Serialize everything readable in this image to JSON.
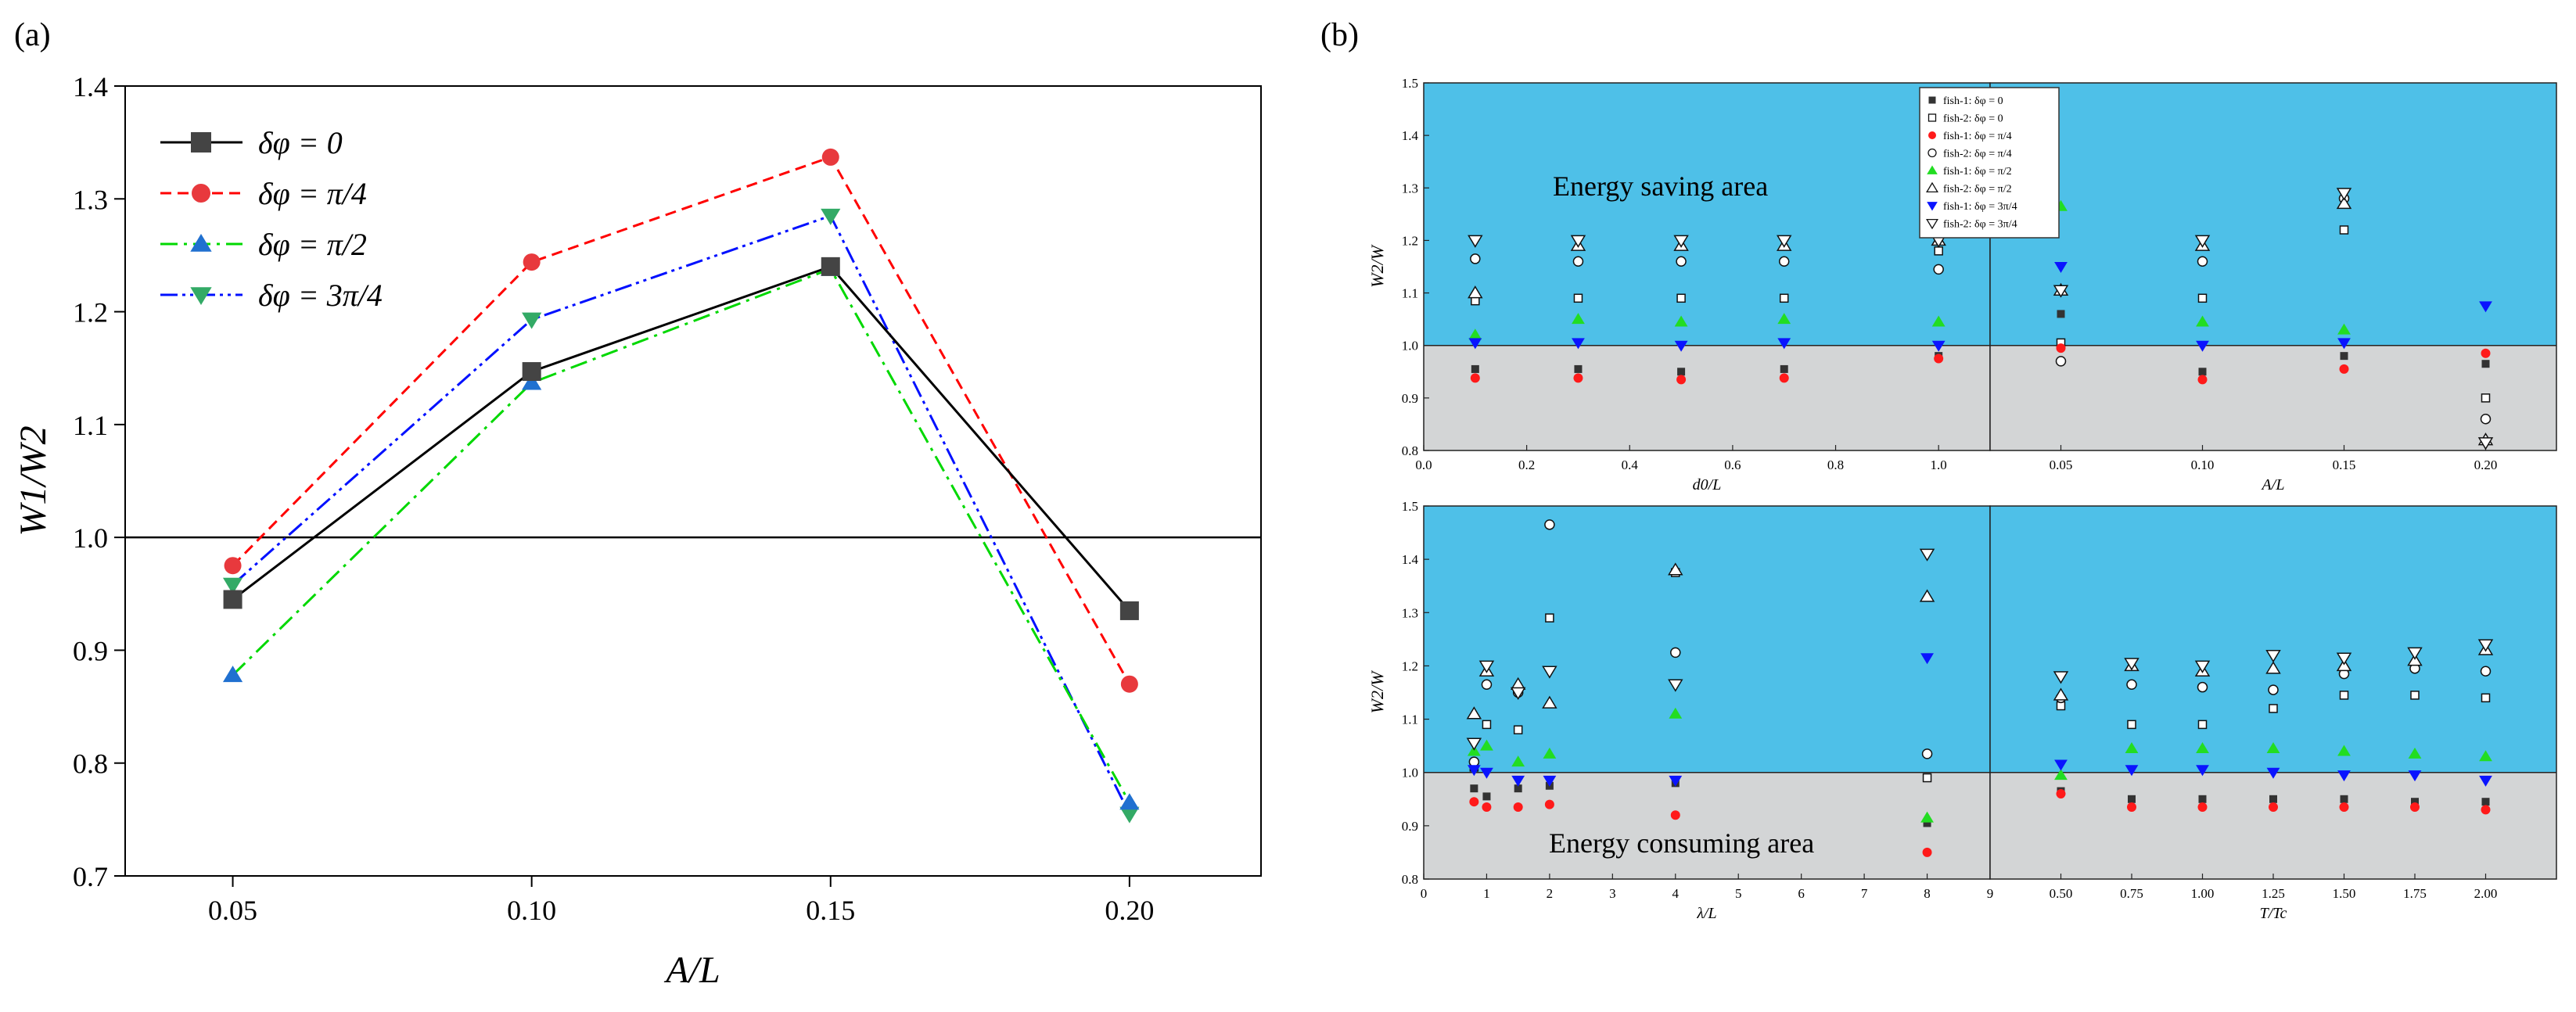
{
  "panel_labels": [
    "(a)",
    "(b)"
  ],
  "colors": {
    "black": "#000000",
    "red": "#ff0000",
    "green": "#00d800",
    "blue": "#0010ff",
    "marker_black": "#444444",
    "marker_red": "#e8393d",
    "marker_green": "#33cc33",
    "marker_blue": "#2070d0",
    "marker_tri_down": "#33aa66",
    "saving": "#4ec0e8",
    "consuming": "#d3d5d6"
  },
  "chart_data": [
    {
      "type": "line",
      "panel": "(a)",
      "xlabel": "A/L",
      "ylabel": "W1/W2",
      "categories": [
        "0.05",
        "0.10",
        "0.15",
        "0.20"
      ],
      "x": [
        0.05,
        0.1,
        0.15,
        0.2
      ],
      "xlim": [
        0.032,
        0.222
      ],
      "ylim": [
        0.7,
        1.4
      ],
      "yticks": [
        "0.7",
        "0.8",
        "0.9",
        "1.0",
        "1.1",
        "1.2",
        "1.3",
        "1.4"
      ],
      "reference_line": 1.0,
      "legend_position": "top-left",
      "series": [
        {
          "name": "δφ = 0",
          "values": [
            0.945,
            1.147,
            1.24,
            0.935
          ]
        },
        {
          "name": "δφ = π/4",
          "values": [
            0.975,
            1.244,
            1.337,
            0.87
          ]
        },
        {
          "name": "δφ = π/2",
          "values": [
            0.878,
            1.137,
            1.238,
            0.765
          ]
        },
        {
          "name": "δφ = 3π/4",
          "values": [
            0.958,
            1.193,
            1.285,
            0.755
          ]
        }
      ]
    },
    {
      "type": "scatter",
      "panel": "(b)",
      "ylabel": "W2/W",
      "ylim": [
        0.8,
        1.5
      ],
      "yticks": [
        "0.8",
        "0.9",
        "1.0",
        "1.1",
        "1.2",
        "1.3",
        "1.4",
        "1.5"
      ],
      "threshold": 1.0,
      "annotations": [
        "Energy saving area",
        "Energy consuming area"
      ],
      "legend": [
        "fish-1: δφ = 0",
        "fish-2: δφ = 0",
        "fish-1: δφ = π/4",
        "fish-2: δφ = π/4",
        "fish-1: δφ = π/2",
        "fish-2: δφ = π/2",
        "fish-1: δφ = 3π/4",
        "fish-2: δφ = 3π/4"
      ],
      "subplots": [
        {
          "xlabel": "d0/L",
          "xlim": [
            0.0,
            1.1
          ],
          "xticks": [
            "0.0",
            "0.2",
            "0.4",
            "0.6",
            "0.8",
            "1.0"
          ],
          "x": [
            0.1,
            0.3,
            0.5,
            0.7,
            1.0
          ],
          "series": [
            {
              "name": "fish-1: δφ = 0",
              "values": [
                0.955,
                0.955,
                0.95,
                0.955,
                0.98
              ]
            },
            {
              "name": "fish-2: δφ = 0",
              "values": [
                1.085,
                1.09,
                1.09,
                1.09,
                1.18
              ]
            },
            {
              "name": "fish-1: δφ = π/4",
              "values": [
                0.938,
                0.938,
                0.935,
                0.938,
                0.975
              ]
            },
            {
              "name": "fish-2: δφ = π/4",
              "values": [
                1.165,
                1.16,
                1.16,
                1.16,
                1.145
              ]
            },
            {
              "name": "fish-1: δφ = π/2",
              "values": [
                1.02,
                1.05,
                1.045,
                1.05,
                1.045
              ]
            },
            {
              "name": "fish-2: δφ = π/2",
              "values": [
                1.1,
                1.19,
                1.19,
                1.19,
                1.2
              ]
            },
            {
              "name": "fish-1: δφ = 3π/4",
              "values": [
                1.005,
                1.005,
                1.0,
                1.005,
                1.0
              ]
            },
            {
              "name": "fish-2: δφ = 3π/4",
              "values": [
                1.2,
                1.2,
                1.2,
                1.2,
                1.2
              ]
            }
          ]
        },
        {
          "xlabel": "A/L",
          "xlim": [
            0.025,
            0.225
          ],
          "xticks": [
            "0.05",
            "0.10",
            "0.15",
            "0.20"
          ],
          "x": [
            0.05,
            0.1,
            0.15,
            0.2
          ],
          "series": [
            {
              "name": "fish-1: δφ = 0",
              "values": [
                1.06,
                0.95,
                0.98,
                0.965
              ]
            },
            {
              "name": "fish-2: δφ = 0",
              "values": [
                1.005,
                1.09,
                1.22,
                0.9
              ]
            },
            {
              "name": "fish-1: δφ = π/4",
              "values": [
                0.995,
                0.935,
                0.955,
                0.985
              ]
            },
            {
              "name": "fish-2: δφ = π/4",
              "values": [
                0.97,
                1.16,
                1.28,
                0.86
              ]
            },
            {
              "name": "fish-1: δφ = π/2",
              "values": [
                1.265,
                1.045,
                1.03,
                0.82
              ]
            },
            {
              "name": "fish-2: δφ = π/2",
              "values": [
                1.105,
                1.19,
                1.27,
                0.82
              ]
            },
            {
              "name": "fish-1: δφ = 3π/4",
              "values": [
                1.15,
                1.0,
                1.005,
                1.075
              ]
            },
            {
              "name": "fish-2: δφ = 3π/4",
              "values": [
                1.105,
                1.2,
                1.29,
                0.815
              ]
            }
          ]
        },
        {
          "xlabel": "λ/L",
          "xlim": [
            0,
            9
          ],
          "xticks": [
            "0",
            "1",
            "2",
            "3",
            "4",
            "5",
            "6",
            "7",
            "8",
            "9"
          ],
          "x": [
            0.8,
            1.0,
            1.5,
            2.0,
            4.0,
            8.0
          ],
          "series": [
            {
              "name": "fish-1: δφ = 0",
              "values": [
                0.97,
                0.955,
                0.97,
                0.975,
                0.98,
                0.905
              ]
            },
            {
              "name": "fish-2: δφ = 0",
              "values": [
                1.01,
                1.09,
                1.08,
                1.29,
                1.375,
                0.99
              ]
            },
            {
              "name": "fish-1: δφ = π/4",
              "values": [
                0.945,
                0.935,
                0.935,
                0.94,
                0.92,
                0.85
              ]
            },
            {
              "name": "fish-2: δφ = π/4",
              "values": [
                1.02,
                1.165,
                1.15,
                1.465,
                1.225,
                1.035
              ]
            },
            {
              "name": "fish-1: δφ = π/2",
              "values": [
                1.04,
                1.05,
                1.02,
                1.035,
                1.11,
                0.915
              ]
            },
            {
              "name": "fish-2: δφ = π/2",
              "values": [
                1.11,
                1.19,
                1.165,
                1.13,
                1.38,
                1.33
              ]
            },
            {
              "name": "fish-1: δφ = 3π/4",
              "values": [
                1.005,
                1.0,
                0.985,
                0.985,
                0.985,
                1.215
              ]
            },
            {
              "name": "fish-2: δφ = 3π/4",
              "values": [
                1.055,
                1.2,
                1.15,
                1.19,
                1.165,
                1.41
              ]
            }
          ]
        },
        {
          "xlabel": "T/Tc",
          "xlim": [
            0.25,
            2.25
          ],
          "xticks": [
            "0.50",
            "0.75",
            "1.00",
            "1.25",
            "1.50",
            "1.75",
            "2.00"
          ],
          "x": [
            0.5,
            0.75,
            1.0,
            1.25,
            1.5,
            1.75,
            2.0
          ],
          "series": [
            {
              "name": "fish-1: δφ = 0",
              "values": [
                0.965,
                0.95,
                0.95,
                0.95,
                0.95,
                0.945,
                0.945
              ]
            },
            {
              "name": "fish-2: δφ = 0",
              "values": [
                1.125,
                1.09,
                1.09,
                1.12,
                1.145,
                1.145,
                1.14
              ]
            },
            {
              "name": "fish-1: δφ = π/4",
              "values": [
                0.96,
                0.935,
                0.935,
                0.935,
                0.935,
                0.935,
                0.93
              ]
            },
            {
              "name": "fish-2: δφ = π/4",
              "values": [
                1.14,
                1.165,
                1.16,
                1.155,
                1.185,
                1.195,
                1.19
              ]
            },
            {
              "name": "fish-1: δφ = π/2",
              "values": [
                0.995,
                1.045,
                1.045,
                1.045,
                1.04,
                1.035,
                1.03
              ]
            },
            {
              "name": "fish-2: δφ = π/2",
              "values": [
                1.145,
                1.2,
                1.19,
                1.195,
                1.2,
                1.21,
                1.23
              ]
            },
            {
              "name": "fish-1: δφ = 3π/4",
              "values": [
                1.015,
                1.005,
                1.005,
                1.0,
                0.995,
                0.995,
                0.985
              ]
            },
            {
              "name": "fish-2: δφ = 3π/4",
              "values": [
                1.18,
                1.205,
                1.2,
                1.22,
                1.215,
                1.225,
                1.24
              ]
            }
          ]
        }
      ]
    }
  ]
}
